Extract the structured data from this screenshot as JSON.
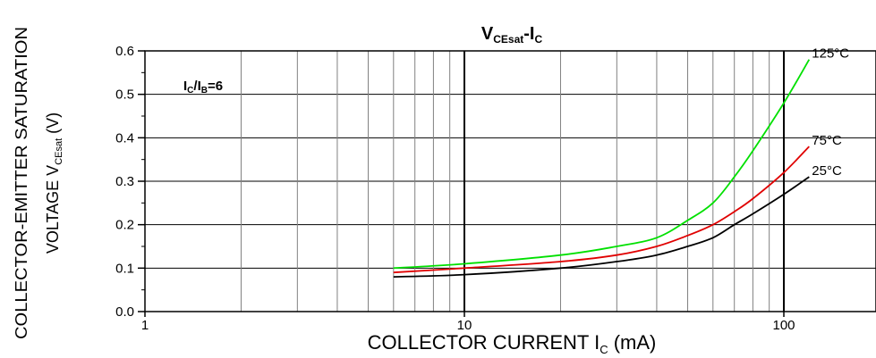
{
  "chart_data": {
    "type": "line",
    "title": {
      "main": "V",
      "sub": "CEsat",
      "dash": "-I",
      "sub2": "C"
    },
    "annotation": {
      "main": "I",
      "sub1": "C",
      "slash": "/I",
      "sub2": "B",
      "rest": "=6"
    },
    "xlabel": {
      "main": "COLLECTOR CURRENT I",
      "sub": "C",
      "unit": " (mA)"
    },
    "ylabel": {
      "line1": "COLLECTOR-EMITTER SATURATION",
      "line2_main": "VOLTAGE V",
      "line2_sub": "CEsat",
      "line2_unit": " (V)"
    },
    "x_scale": "log",
    "xlim": [
      1,
      300
    ],
    "ylim": [
      0,
      0.6
    ],
    "x_ticks": [
      1,
      10,
      100
    ],
    "x_tick_labels": [
      "1",
      "10",
      "100"
    ],
    "y_ticks": [
      0.0,
      0.1,
      0.2,
      0.3,
      0.4,
      0.5,
      0.6
    ],
    "y_tick_labels": [
      "0.0",
      "0.1",
      "0.2",
      "0.3",
      "0.4",
      "0.5",
      "0.6"
    ],
    "grid": true,
    "series": [
      {
        "name": "125°C",
        "color": "#00e000",
        "x": [
          6,
          10,
          20,
          30,
          40,
          50,
          60,
          70,
          80,
          100,
          120
        ],
        "y": [
          0.1,
          0.11,
          0.13,
          0.15,
          0.17,
          0.21,
          0.25,
          0.31,
          0.37,
          0.48,
          0.58
        ]
      },
      {
        "name": "75°C",
        "color": "#e00000",
        "x": [
          6,
          10,
          20,
          30,
          40,
          50,
          60,
          70,
          80,
          100,
          120
        ],
        "y": [
          0.09,
          0.1,
          0.115,
          0.13,
          0.15,
          0.175,
          0.2,
          0.23,
          0.26,
          0.32,
          0.38
        ]
      },
      {
        "name": "25°C",
        "color": "#000000",
        "x": [
          6,
          10,
          20,
          30,
          40,
          50,
          60,
          70,
          80,
          100,
          120
        ],
        "y": [
          0.08,
          0.085,
          0.1,
          0.115,
          0.13,
          0.15,
          0.17,
          0.2,
          0.225,
          0.27,
          0.31
        ]
      }
    ]
  }
}
